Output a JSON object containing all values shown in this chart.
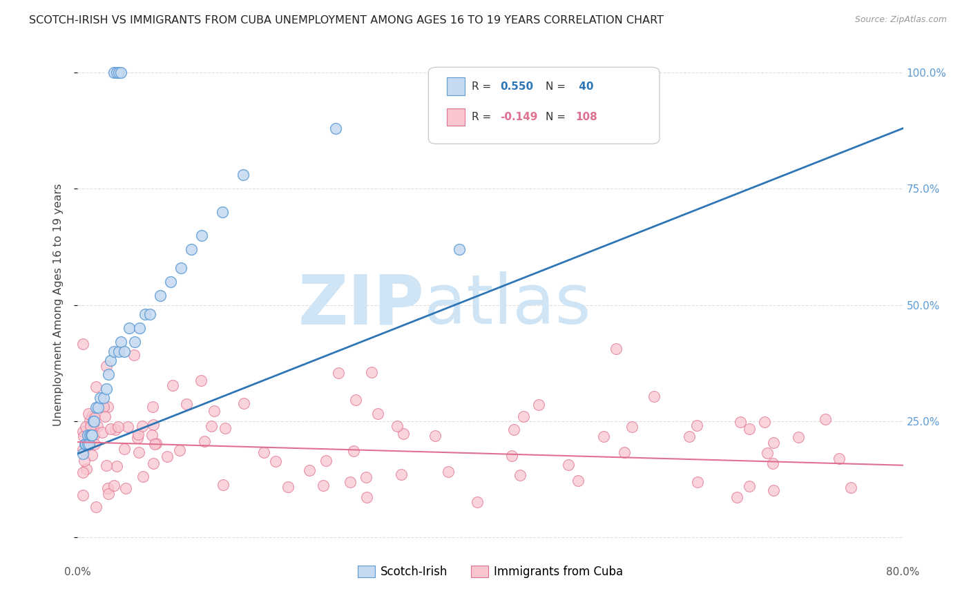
{
  "title": "SCOTCH-IRISH VS IMMIGRANTS FROM CUBA UNEMPLOYMENT AMONG AGES 16 TO 19 YEARS CORRELATION CHART",
  "source": "Source: ZipAtlas.com",
  "ylabel": "Unemployment Among Ages 16 to 19 years",
  "xlim": [
    0.0,
    0.8
  ],
  "ylim": [
    -0.05,
    1.05
  ],
  "color_blue_fill": "#c5d9f0",
  "color_blue_edge": "#5b9bd5",
  "color_blue_line": "#2e75b6",
  "color_pink_fill": "#f9c6d0",
  "color_pink_edge": "#e07090",
  "color_pink_line": "#e07090",
  "watermark_zip": "#c8dff0",
  "watermark_atlas": "#c8dff0",
  "background_color": "#ffffff",
  "grid_color": "#dddddd",
  "blue_line_x0": 0.0,
  "blue_line_y0": 0.18,
  "blue_line_x1": 0.8,
  "blue_line_y1": 0.88,
  "pink_line_x0": 0.0,
  "pink_line_y0": 0.205,
  "pink_line_x1": 0.8,
  "pink_line_y1": 0.155
}
